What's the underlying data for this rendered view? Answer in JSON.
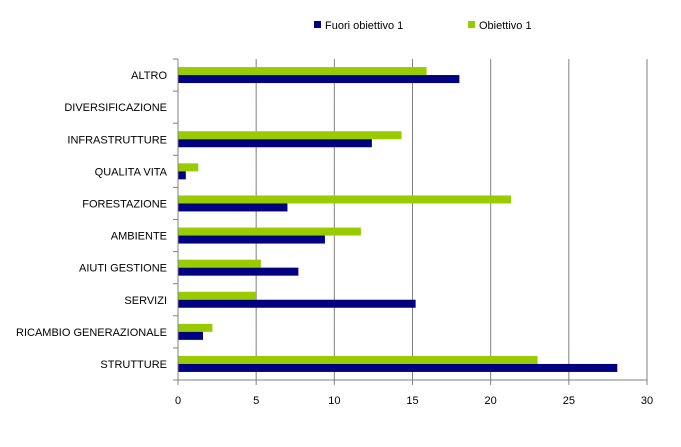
{
  "chart_data": {
    "type": "bar",
    "orientation": "horizontal",
    "title": "",
    "xlabel": "",
    "ylabel": "",
    "categories": [
      "ALTRO",
      "DIVERSIFICAZIONE",
      "INFRASTRUTTURE",
      "QUALITA VITA",
      "FORESTAZIONE",
      "AMBIENTE",
      "AIUTI GESTIONE",
      "SERVIZI",
      "RICAMBIO GENERAZIONALE",
      "STRUTTURE"
    ],
    "series": [
      {
        "name": "Fuori obiettivo 1",
        "color": "#000080",
        "values": [
          18.0,
          0,
          12.4,
          0.5,
          7.0,
          9.4,
          7.7,
          15.2,
          1.6,
          28.1
        ]
      },
      {
        "name": "Obiettivo 1",
        "color": "#99cc00",
        "values": [
          15.9,
          0,
          14.3,
          1.3,
          21.3,
          11.7,
          5.3,
          5.0,
          2.2,
          23.0
        ]
      }
    ],
    "xlim": [
      0,
      30
    ],
    "xticks": [
      0,
      5,
      10,
      15,
      20,
      25,
      30
    ],
    "grid": true,
    "legend_position": "top"
  }
}
